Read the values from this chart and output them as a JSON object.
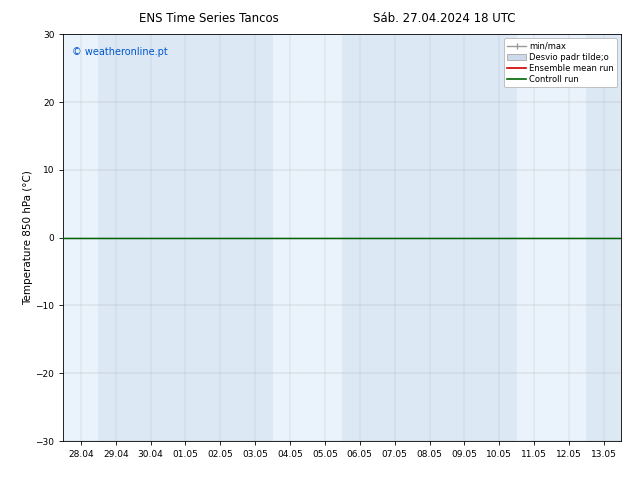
{
  "title_left": "ENS Time Series Tancos",
  "title_right": "Sáb. 27.04.2024 18 UTC",
  "ylabel": "Temperature 850 hPa (°C)",
  "watermark": "© weatheronline.pt",
  "watermark_color": "#0055cc",
  "ylim": [
    -30,
    30
  ],
  "yticks": [
    -30,
    -20,
    -10,
    0,
    10,
    20,
    30
  ],
  "x_labels": [
    "28.04",
    "29.04",
    "30.04",
    "01.05",
    "02.05",
    "03.05",
    "04.05",
    "05.05",
    "06.05",
    "07.05",
    "08.05",
    "09.05",
    "10.05",
    "11.05",
    "12.05",
    "13.05"
  ],
  "background_color": "#ffffff",
  "plot_bg_color": "#dce9f5",
  "weekend_bg_color": "#eaf3fb",
  "weekend_indices": [
    0,
    6,
    7,
    13,
    14
  ],
  "zero_line_color": "#006600",
  "ensemble_mean_color": "#cc0000",
  "legend_labels": [
    "min/max",
    "Desvio padr tilde;o",
    "Ensemble mean run",
    "Controll run"
  ],
  "minmax_color": "#999999",
  "desvio_facecolor": "#ccdaeb",
  "title_fontsize": 8.5,
  "ylabel_fontsize": 7.5,
  "tick_fontsize": 6.5,
  "watermark_fontsize": 7,
  "legend_fontsize": 6
}
